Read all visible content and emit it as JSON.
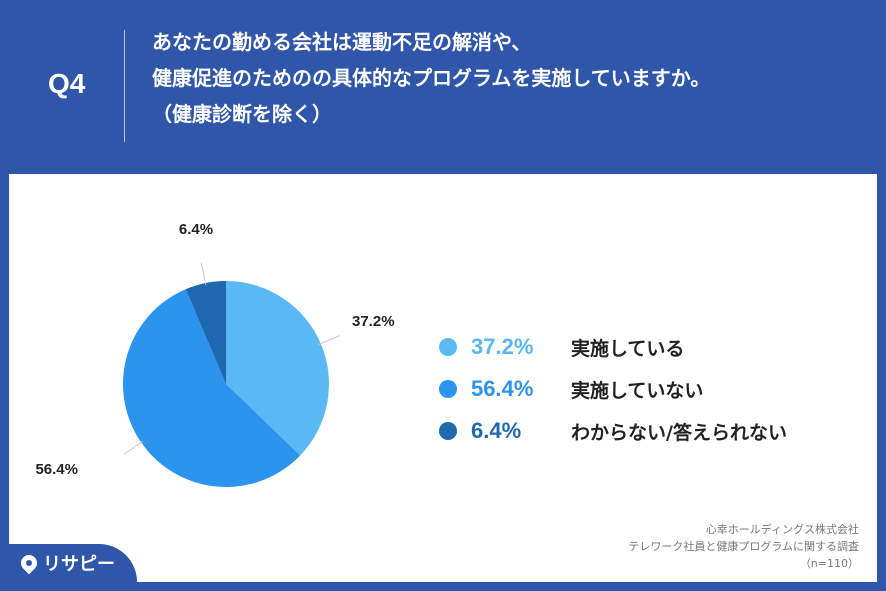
{
  "header": {
    "question_no": "Q4",
    "question_lines": [
      "あなたの勤める会社は運動不足の解消や、",
      "健康促進のためのの具体的なプログラムを実施していますか。",
      "（健康診断を除く）"
    ]
  },
  "chart_data": {
    "type": "pie",
    "categories": [
      "実施している",
      "実施していない",
      "わからない/答えられない"
    ],
    "values": [
      37.2,
      56.4,
      6.4
    ],
    "value_labels": [
      "37.2%",
      "56.4%",
      "6.4%"
    ],
    "colors": [
      "#5ab8f5",
      "#2a94ee",
      "#1e68b0"
    ],
    "start_angle_deg": 0,
    "direction": "clockwise",
    "legend_position": "right"
  },
  "legend": {
    "items": [
      {
        "pct": "37.2%",
        "label": "実施している",
        "color": "#5ab8f5"
      },
      {
        "pct": "56.4%",
        "label": "実施していない",
        "color": "#2a94ee"
      },
      {
        "pct": "6.4%",
        "label": "わからない/答えられない",
        "color": "#1e68b0"
      }
    ]
  },
  "source": {
    "company": "心幸ホールディングス株式会社",
    "survey": "テレワーク社員と健康プログラムに関する調査",
    "sample": "（n=110）"
  },
  "logo": {
    "text": "リサピー"
  }
}
